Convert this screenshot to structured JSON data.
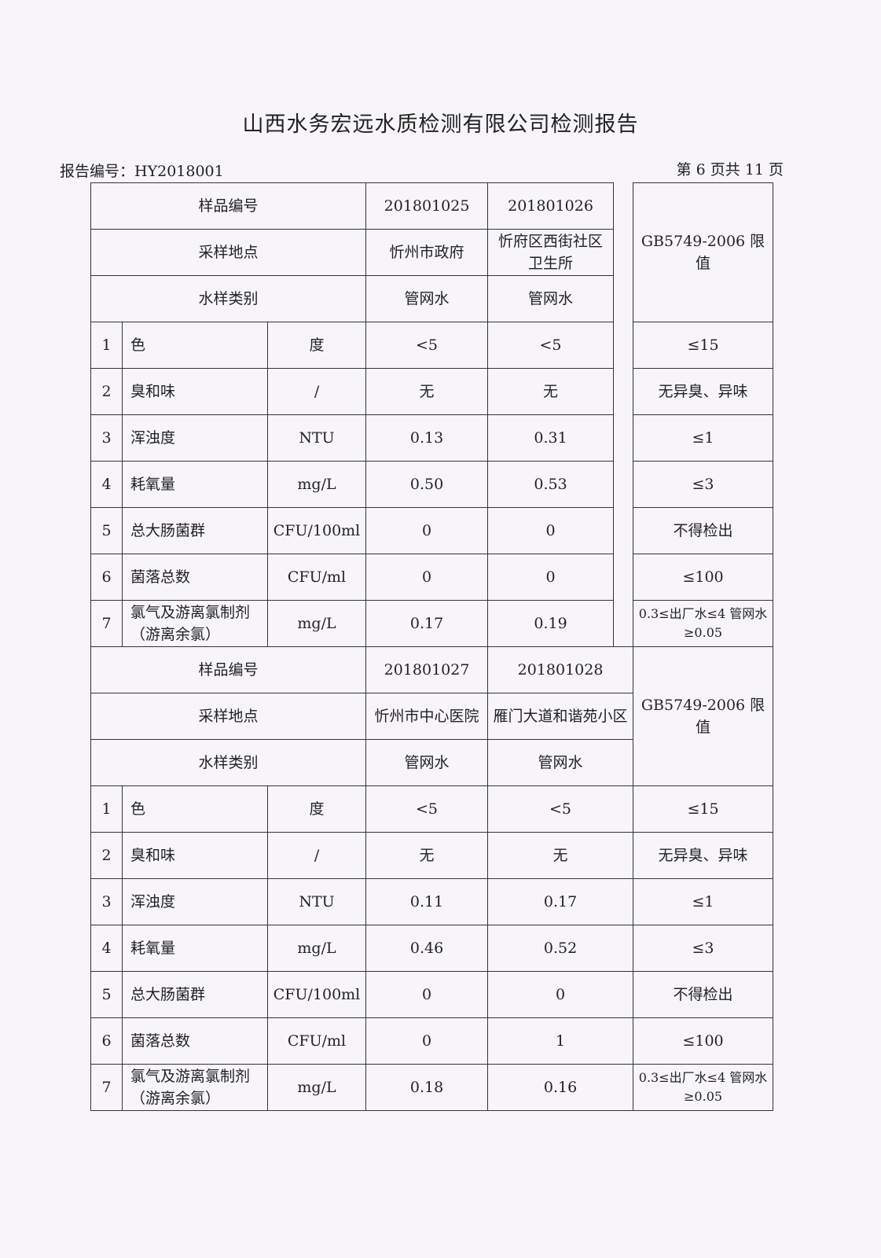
{
  "title": "山西水务宏远水质检测有限公司检测报告",
  "report_no": "报告编号：HY2018001",
  "page_no": "第 6 页共 11 页",
  "labels": {
    "sample_no": "样品编号",
    "location": "采样地点",
    "type": "水样类别",
    "limit": "GB5749-2006 限值"
  },
  "blocks": [
    {
      "samples": [
        "201801025",
        "201801026"
      ],
      "locations": [
        "忻州市政府",
        "忻府区西街社区卫生所"
      ],
      "types": [
        "管网水",
        "管网水"
      ],
      "rows": [
        [
          "1",
          "色",
          "度",
          "<5",
          "<5",
          "≤15"
        ],
        [
          "2",
          "臭和味",
          "/",
          "无",
          "无",
          "无异臭、异味"
        ],
        [
          "3",
          "浑浊度",
          "NTU",
          "0.13",
          "0.31",
          "≤1"
        ],
        [
          "4",
          "耗氧量",
          "mg/L",
          "0.50",
          "0.53",
          "≤3"
        ],
        [
          "5",
          "总大肠菌群",
          "CFU/100ml",
          "0",
          "0",
          "不得检出"
        ],
        [
          "6",
          "菌落总数",
          "CFU/ml",
          "0",
          "0",
          "≤100"
        ],
        [
          "7",
          "氯气及游离氯制剂（游离余氯）",
          "mg/L",
          "0.17",
          "0.19",
          "0.3≤出厂水≤4 管网水≥0.05"
        ]
      ]
    },
    {
      "samples": [
        "201801027",
        "201801028"
      ],
      "locations": [
        "忻州市中心医院",
        "雁门大道和谐苑小区"
      ],
      "types": [
        "管网水",
        "管网水"
      ],
      "rows": [
        [
          "1",
          "色",
          "度",
          "<5",
          "<5",
          "≤15"
        ],
        [
          "2",
          "臭和味",
          "/",
          "无",
          "无",
          "无异臭、异味"
        ],
        [
          "3",
          "浑浊度",
          "NTU",
          "0.11",
          "0.17",
          "≤1"
        ],
        [
          "4",
          "耗氧量",
          "mg/L",
          "0.46",
          "0.52",
          "≤3"
        ],
        [
          "5",
          "总大肠菌群",
          "CFU/100ml",
          "0",
          "0",
          "不得检出"
        ],
        [
          "6",
          "菌落总数",
          "CFU/ml",
          "0",
          "1",
          "≤100"
        ],
        [
          "7",
          "氯气及游离氯制剂（游离余氯）",
          "mg/L",
          "0.18",
          "0.16",
          "0.3≤出厂水≤4 管网水≥0.05"
        ]
      ]
    }
  ]
}
